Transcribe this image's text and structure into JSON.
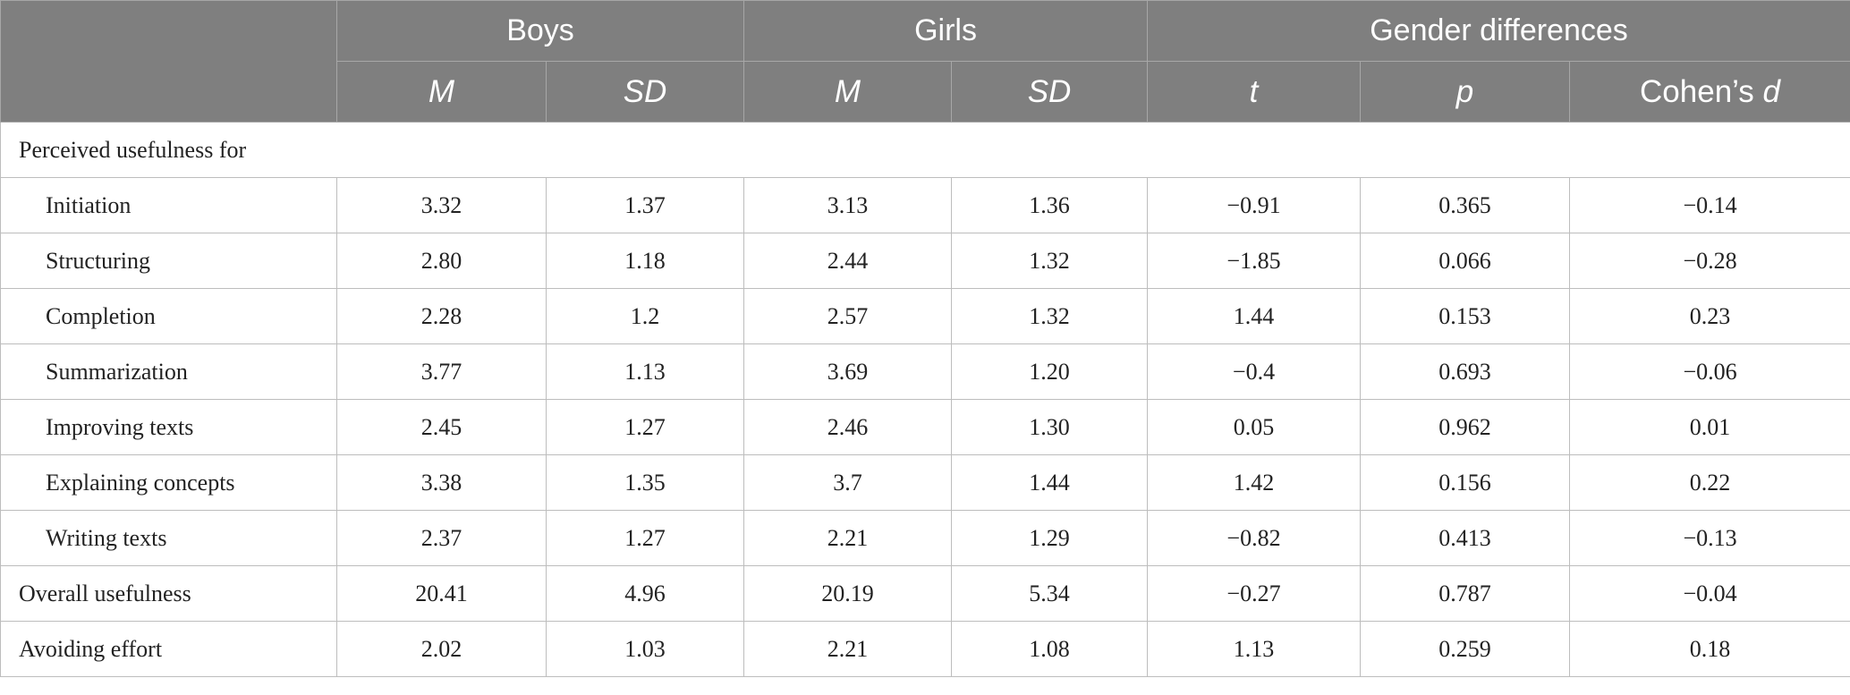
{
  "header": {
    "groups": [
      "Boys",
      "Girls",
      "Gender differences"
    ],
    "subcolumns": [
      {
        "label": "M",
        "italic": true
      },
      {
        "label": "SD",
        "italic": true
      },
      {
        "label": "M",
        "italic": true
      },
      {
        "label": "SD",
        "italic": true
      },
      {
        "label": "t",
        "italic": true
      },
      {
        "label": "p",
        "italic": true
      },
      {
        "prefix": "Cohen’s ",
        "label": "d",
        "italic": true
      }
    ]
  },
  "section_label": "Perceived usefulness for",
  "rows": [
    {
      "label": "Initiation",
      "indent": true,
      "values": [
        "3.32",
        "1.37",
        "3.13",
        "1.36",
        "−0.91",
        "0.365",
        "−0.14"
      ]
    },
    {
      "label": "Structuring",
      "indent": true,
      "values": [
        "2.80",
        "1.18",
        "2.44",
        "1.32",
        "−1.85",
        "0.066",
        "−0.28"
      ]
    },
    {
      "label": "Completion",
      "indent": true,
      "values": [
        "2.28",
        "1.2",
        "2.57",
        "1.32",
        "1.44",
        "0.153",
        "0.23"
      ]
    },
    {
      "label": "Summarization",
      "indent": true,
      "values": [
        "3.77",
        "1.13",
        "3.69",
        "1.20",
        "−0.4",
        "0.693",
        "−0.06"
      ]
    },
    {
      "label": "Improving texts",
      "indent": true,
      "values": [
        "2.45",
        "1.27",
        "2.46",
        "1.30",
        "0.05",
        "0.962",
        "0.01"
      ]
    },
    {
      "label": "Explaining concepts",
      "indent": true,
      "values": [
        "3.38",
        "1.35",
        "3.7",
        "1.44",
        "1.42",
        "0.156",
        "0.22"
      ]
    },
    {
      "label": "Writing texts",
      "indent": true,
      "values": [
        "2.37",
        "1.27",
        "2.21",
        "1.29",
        "−0.82",
        "0.413",
        "−0.13"
      ]
    },
    {
      "label": "Overall usefulness",
      "indent": false,
      "values": [
        "20.41",
        "4.96",
        "20.19",
        "5.34",
        "−0.27",
        "0.787",
        "−0.04"
      ]
    },
    {
      "label": "Avoiding effort",
      "indent": false,
      "values": [
        "2.02",
        "1.03",
        "2.21",
        "1.08",
        "1.13",
        "0.259",
        "0.18"
      ]
    }
  ],
  "colors": {
    "header_bg": "#7f7f7f",
    "header_text": "#ffffff",
    "grid": "#bdbdbd"
  }
}
